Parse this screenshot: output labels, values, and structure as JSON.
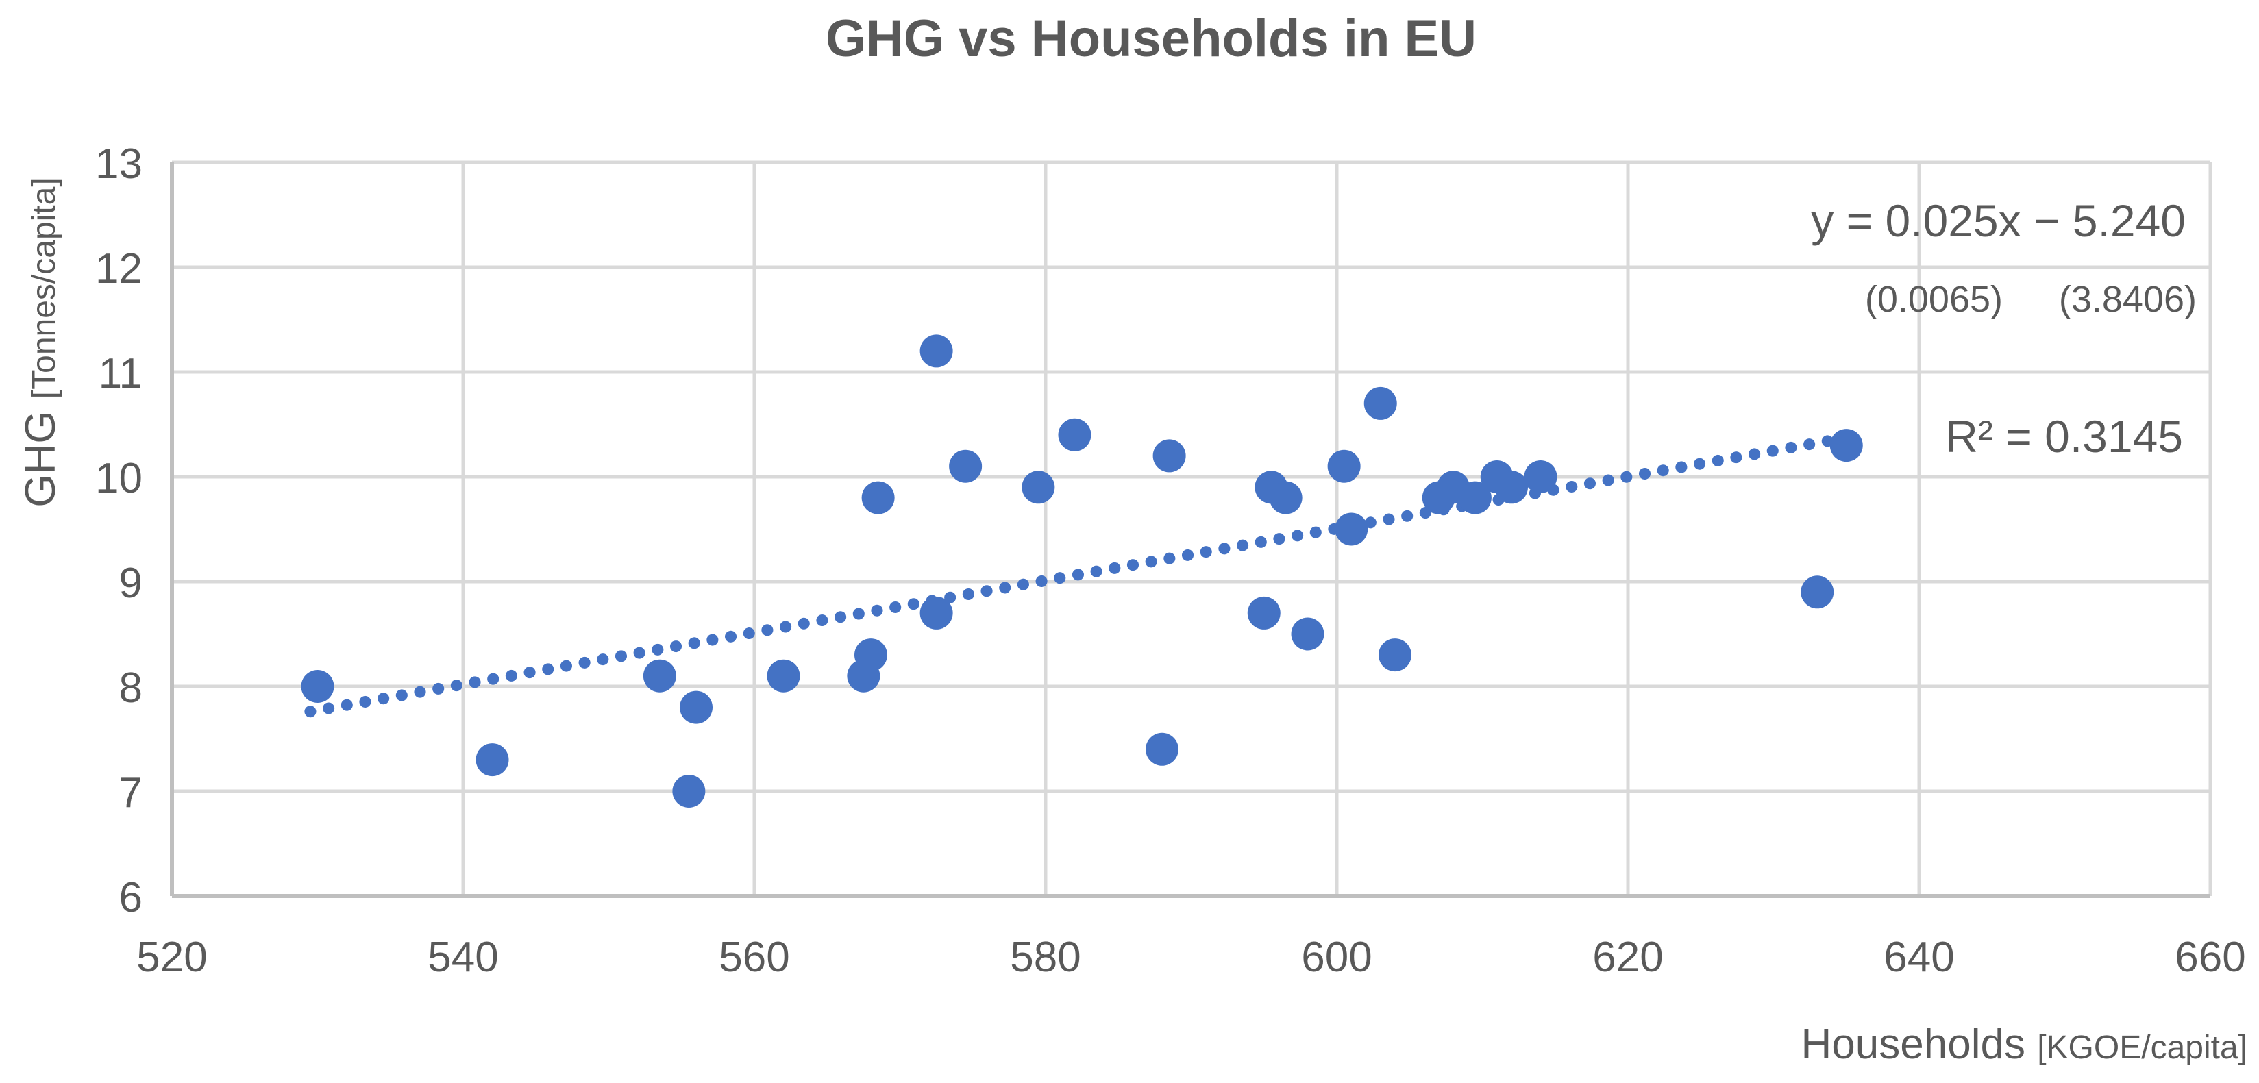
{
  "title": "GHG vs Households in EU",
  "annotations": {
    "equation": "y = 0.025x − 5.240",
    "std_error_slope": "(0.0065)",
    "std_error_intercept": "(3.8406)",
    "r_squared": "R² = 0.3145"
  },
  "axes": {
    "y": {
      "label_main": "GHG",
      "label_unit": "[Tonnes/capita]",
      "min": 6,
      "max": 13,
      "ticks": [
        13,
        12,
        11,
        10,
        9,
        8,
        7,
        6
      ]
    },
    "x": {
      "label_main": "Households",
      "label_unit": "[KGOE/capita]",
      "min": 520,
      "max": 660,
      "ticks": [
        520,
        540,
        560,
        580,
        600,
        620,
        640,
        660
      ]
    }
  },
  "colors": {
    "marker": "#4472C4",
    "trendline": "#4472C4",
    "gridline": "#D9D9D9",
    "axisline": "#BFBFBF",
    "text": "#595959",
    "background": "#FFFFFF"
  },
  "chart_data": {
    "type": "scatter",
    "title": "GHG vs Households in EU",
    "xlabel": "Households [KGOE/capita]",
    "ylabel": "GHG [Tonnes/capita]",
    "xlim": [
      520,
      660
    ],
    "ylim": [
      6,
      13
    ],
    "grid": true,
    "legend": "none",
    "points": [
      [
        530,
        8.0
      ],
      [
        542,
        7.3
      ],
      [
        553.5,
        8.1
      ],
      [
        556,
        7.8
      ],
      [
        555.5,
        7.0
      ],
      [
        562,
        8.1
      ],
      [
        567.5,
        8.1
      ],
      [
        568,
        8.3
      ],
      [
        568.5,
        9.8
      ],
      [
        572.5,
        8.7
      ],
      [
        572.5,
        11.2
      ],
      [
        574.5,
        10.1
      ],
      [
        579.5,
        9.9
      ],
      [
        582,
        10.4
      ],
      [
        588,
        7.4
      ],
      [
        588.5,
        10.2
      ],
      [
        595,
        8.7
      ],
      [
        595.5,
        9.9
      ],
      [
        596.5,
        9.8
      ],
      [
        598,
        8.5
      ],
      [
        600.5,
        10.1
      ],
      [
        601,
        9.5
      ],
      [
        603,
        10.7
      ],
      [
        604,
        8.3
      ],
      [
        607,
        9.8
      ],
      [
        608,
        9.9
      ],
      [
        609.5,
        9.8
      ],
      [
        611,
        10.0
      ],
      [
        612,
        9.9
      ],
      [
        614,
        10.0
      ],
      [
        633,
        8.9
      ],
      [
        635,
        10.3
      ]
    ],
    "trendline": {
      "style": "dotted",
      "x1": 529.5,
      "y1": 7.76,
      "x2": 635.3,
      "y2": 10.38,
      "equation": "y = 0.025x − 5.240",
      "r2": 0.3145
    }
  }
}
